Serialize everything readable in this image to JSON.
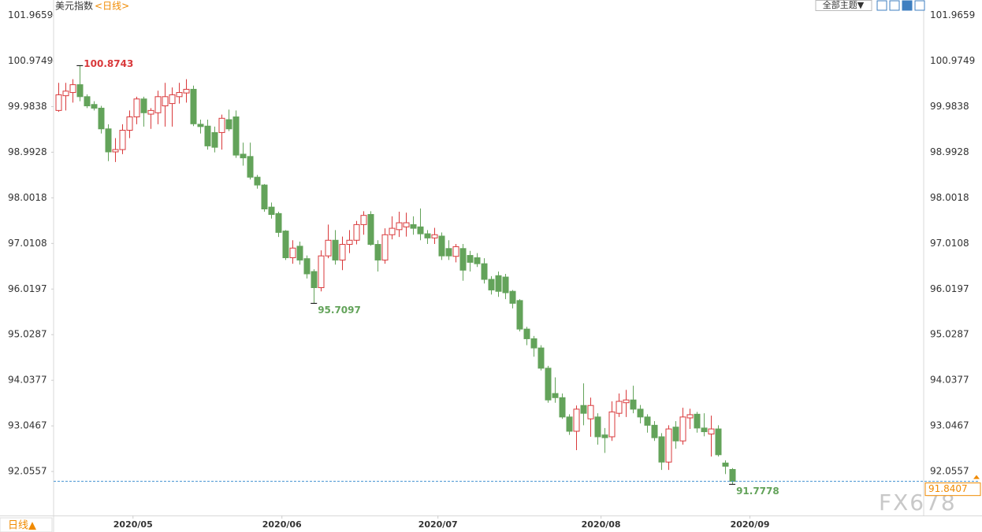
{
  "chart_data": {
    "type": "candlestick",
    "title": "美元指数",
    "subtitle": "<日线>",
    "up_color": "#d9393b",
    "down_color": "#63a35a",
    "price_line_color": "#3f8fd0",
    "tag_color": "#f08a00",
    "ylim": [
      91.1,
      102.3
    ],
    "yticks": [
      101.9659,
      100.9749,
      99.9838,
      98.9928,
      98.0018,
      97.0108,
      96.0197,
      95.0287,
      94.0377,
      93.0467,
      92.0557
    ],
    "xlim": [
      -0.7,
      122
    ],
    "xticks": [
      {
        "value": 10.5,
        "label": "2020/05"
      },
      {
        "value": 31.5,
        "label": "2020/06"
      },
      {
        "value": 53.5,
        "label": "2020/07"
      },
      {
        "value": 76.5,
        "label": "2020/08"
      },
      {
        "value": 97.5,
        "label": "2020/09"
      }
    ],
    "grid": false,
    "open": [
      99.9,
      100.22,
      100.29,
      100.46,
      100.2,
      100.03,
      99.95,
      99.5,
      99.0,
      99.05,
      99.47,
      99.76,
      100.15,
      99.82,
      99.85,
      100.0,
      100.05,
      100.2,
      100.28,
      100.36,
      99.6,
      99.56,
      99.42,
      99.42,
      99.7,
      99.76,
      98.95,
      98.9,
      98.45,
      98.28,
      97.8,
      97.66,
      97.28,
      96.7,
      96.95,
      96.68,
      96.4,
      96.05,
      96.74,
      97.08,
      96.65,
      96.99,
      97.08,
      97.42,
      97.64,
      96.99,
      96.65,
      97.2,
      97.31,
      97.37,
      97.42,
      97.37,
      97.22,
      97.13,
      97.17,
      96.9,
      96.73,
      96.9,
      96.75,
      96.7,
      96.57,
      96.23,
      96.31,
      96.28,
      95.97,
      95.77,
      95.15,
      94.94,
      94.74,
      94.3,
      93.75,
      93.66,
      93.24,
      92.93,
      93.49,
      93.2,
      93.24,
      92.85,
      92.81,
      93.32,
      93.55,
      93.61,
      93.41,
      93.24,
      93.06,
      92.81,
      92.26,
      93.02,
      92.72,
      93.22,
      93.3,
      93.0,
      92.87,
      92.98,
      92.24,
      92.1
    ],
    "high": [
      100.5,
      100.5,
      100.58,
      100.8743,
      100.25,
      100.1,
      100.0,
      99.6,
      99.3,
      99.6,
      99.9,
      100.2,
      100.2,
      99.95,
      100.33,
      100.5,
      100.4,
      100.5,
      100.58,
      100.44,
      99.7,
      99.7,
      99.55,
      99.81,
      99.92,
      99.9,
      99.2,
      99.2,
      98.5,
      98.3,
      97.9,
      97.7,
      97.3,
      97.08,
      97.05,
      96.75,
      96.45,
      96.86,
      97.42,
      97.3,
      97.16,
      97.3,
      97.5,
      97.71,
      97.71,
      97.08,
      97.34,
      97.6,
      97.7,
      97.68,
      97.6,
      97.77,
      97.3,
      97.35,
      97.25,
      97.08,
      97.0,
      97.0,
      96.85,
      96.8,
      96.69,
      96.3,
      96.4,
      96.35,
      96.0,
      95.8,
      95.2,
      95.0,
      94.8,
      94.35,
      94.1,
      93.75,
      93.3,
      93.49,
      93.97,
      93.66,
      93.32,
      93.0,
      93.58,
      93.75,
      93.83,
      93.92,
      93.5,
      93.3,
      93.15,
      92.89,
      93.06,
      93.15,
      93.44,
      93.42,
      93.35,
      93.32,
      93.27,
      93.06,
      92.3,
      92.13
    ],
    "low": [
      99.87,
      99.9,
      100.07,
      100.1,
      99.95,
      99.9,
      99.4,
      98.8,
      98.78,
      98.95,
      99.3,
      99.6,
      99.55,
      99.5,
      99.6,
      99.55,
      99.55,
      100.05,
      100.07,
      99.56,
      99.4,
      99.05,
      98.99,
      99.05,
      99.45,
      98.87,
      98.7,
      98.4,
      98.2,
      97.7,
      97.55,
      97.15,
      96.65,
      96.57,
      96.55,
      96.25,
      95.7097,
      95.97,
      96.69,
      96.55,
      96.43,
      96.8,
      96.99,
      97.2,
      96.96,
      96.4,
      96.57,
      97.1,
      97.15,
      97.16,
      97.2,
      97.08,
      97.0,
      97.0,
      96.65,
      96.65,
      96.6,
      96.2,
      96.4,
      96.5,
      96.14,
      95.9,
      95.85,
      95.8,
      95.6,
      95.1,
      94.8,
      94.55,
      94.25,
      93.55,
      93.55,
      93.2,
      92.85,
      92.52,
      93.06,
      92.81,
      92.64,
      92.46,
      92.72,
      93.24,
      93.24,
      93.32,
      93.1,
      92.9,
      92.72,
      92.09,
      92.09,
      92.55,
      92.64,
      92.98,
      92.9,
      92.82,
      92.38,
      92.38,
      92.0,
      91.7778
    ],
    "close": [
      100.24,
      100.32,
      100.46,
      100.2,
      100.0,
      99.95,
      99.5,
      99.0,
      99.05,
      99.47,
      99.76,
      100.15,
      99.85,
      99.9,
      100.2,
      100.2,
      100.24,
      100.29,
      100.36,
      99.61,
      99.55,
      99.13,
      99.1,
      99.73,
      99.5,
      98.93,
      98.87,
      98.45,
      98.28,
      97.76,
      97.64,
      97.25,
      96.7,
      96.91,
      96.65,
      96.35,
      96.05,
      96.74,
      97.08,
      96.65,
      96.99,
      97.08,
      97.42,
      97.62,
      96.99,
      96.65,
      97.2,
      97.34,
      97.46,
      97.46,
      97.34,
      97.22,
      97.13,
      97.2,
      96.74,
      96.74,
      96.94,
      96.43,
      96.6,
      96.57,
      96.23,
      96.0,
      95.97,
      95.94,
      95.71,
      95.15,
      94.94,
      94.74,
      94.3,
      93.61,
      93.66,
      93.24,
      92.93,
      93.41,
      93.32,
      93.49,
      92.81,
      92.79,
      93.35,
      93.58,
      93.61,
      93.41,
      93.24,
      93.06,
      92.79,
      92.26,
      92.98,
      92.72,
      93.24,
      93.29,
      93.0,
      92.92,
      92.98,
      92.42,
      92.17,
      91.8407
    ]
  },
  "toolbar": {
    "theme_button": "全部主题▼",
    "period_button": "日线▲"
  },
  "watermark": "FX678"
}
